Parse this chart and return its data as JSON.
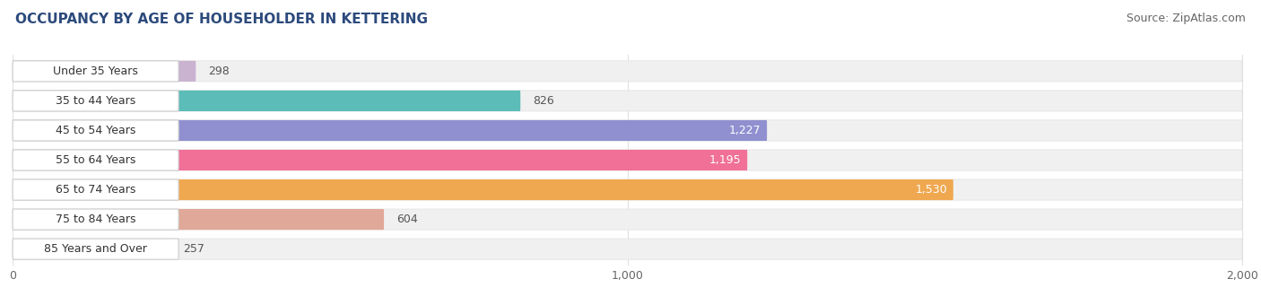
{
  "title": "OCCUPANCY BY AGE OF HOUSEHOLDER IN KETTERING",
  "source": "Source: ZipAtlas.com",
  "categories": [
    "Under 35 Years",
    "35 to 44 Years",
    "45 to 54 Years",
    "55 to 64 Years",
    "65 to 74 Years",
    "75 to 84 Years",
    "85 Years and Over"
  ],
  "values": [
    298,
    826,
    1227,
    1195,
    1530,
    604,
    257
  ],
  "bar_colors": [
    "#c9b3d0",
    "#5bbcb8",
    "#9090d0",
    "#f07098",
    "#f0a850",
    "#e0a898",
    "#a8c8f0"
  ],
  "bar_bg_color": "#f0f0f0",
  "label_bg_color": "#ffffff",
  "label_border_color": "#dddddd",
  "xlim_min": 0,
  "xlim_max": 2000,
  "xticks": [
    0,
    1000,
    2000
  ],
  "xticklabels": [
    "0",
    "1,000",
    "2,000"
  ],
  "title_fontsize": 11,
  "source_fontsize": 9,
  "label_fontsize": 9,
  "value_fontsize": 9,
  "background_color": "#ffffff",
  "value_threshold": 900
}
